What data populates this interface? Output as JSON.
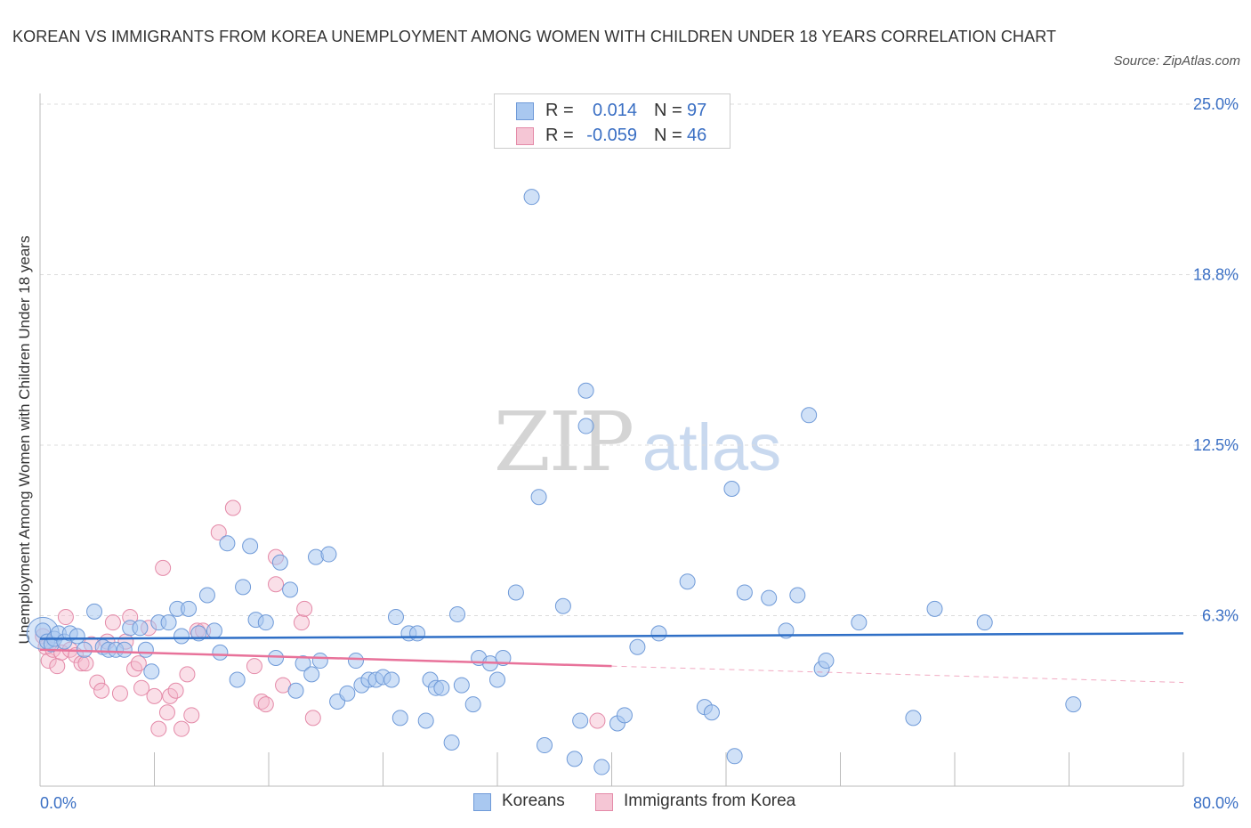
{
  "title": "KOREAN VS IMMIGRANTS FROM KOREA UNEMPLOYMENT AMONG WOMEN WITH CHILDREN UNDER 18 YEARS CORRELATION CHART",
  "source": "Source: ZipAtlas.com",
  "watermark": {
    "zip": "ZIP",
    "atlas": "atlas"
  },
  "colors": {
    "blue_fill": "#a9c8f0",
    "blue_stroke": "#6f9ad8",
    "blue_line": "#2f6fc6",
    "pink_fill": "#f5b8cb",
    "pink_stroke": "#e48aa8",
    "pink_line": "#e8729a",
    "axis_text": "#3a6fc4",
    "grid": "#dcdcdc"
  },
  "legend_top": [
    {
      "r_label": "R =",
      "r_value": "0.014",
      "n_label": "N =",
      "n_value": "97"
    },
    {
      "r_label": "R =",
      "r_value": "-0.059",
      "n_label": "N =",
      "n_value": "46"
    }
  ],
  "legend_bottom": [
    {
      "label": "Koreans"
    },
    {
      "label": "Immigrants from Korea"
    }
  ],
  "chart_data": {
    "type": "scatter",
    "title": "KOREAN VS IMMIGRANTS FROM KOREA UNEMPLOYMENT AMONG WOMEN WITH CHILDREN UNDER 18 YEARS CORRELATION CHART",
    "xlabel": "",
    "ylabel": "Unemployment Among Women with Children Under 18 years",
    "xlim": [
      0,
      80
    ],
    "ylim": [
      0,
      25
    ],
    "x_tick_labels": [
      "0.0%",
      "80.0%"
    ],
    "y_tick_labels": [
      "6.3%",
      "12.5%",
      "18.8%",
      "25.0%"
    ],
    "y_ticks": [
      6.25,
      12.5,
      18.75,
      25.0
    ],
    "series": [
      {
        "name": "Koreans",
        "r": 0.014,
        "n": 97,
        "trend": {
          "x": [
            0,
            80
          ],
          "y": [
            5.4,
            5.6
          ]
        },
        "points": [
          [
            0.2,
            5.7
          ],
          [
            0.5,
            5.3
          ],
          [
            0.8,
            5.2
          ],
          [
            1.0,
            5.4
          ],
          [
            1.3,
            5.6
          ],
          [
            1.7,
            5.3
          ],
          [
            2.1,
            5.6
          ],
          [
            2.6,
            5.5
          ],
          [
            3.1,
            5.0
          ],
          [
            3.8,
            6.4
          ],
          [
            4.4,
            5.1
          ],
          [
            4.8,
            5.0
          ],
          [
            5.3,
            5.0
          ],
          [
            5.9,
            5.0
          ],
          [
            6.3,
            5.8
          ],
          [
            7.0,
            5.8
          ],
          [
            7.4,
            5.0
          ],
          [
            7.8,
            4.2
          ],
          [
            8.3,
            6.0
          ],
          [
            9.0,
            6.0
          ],
          [
            9.6,
            6.5
          ],
          [
            9.9,
            5.5
          ],
          [
            10.4,
            6.5
          ],
          [
            11.1,
            5.6
          ],
          [
            11.7,
            7.0
          ],
          [
            12.2,
            5.7
          ],
          [
            12.6,
            4.9
          ],
          [
            13.1,
            8.9
          ],
          [
            13.8,
            3.9
          ],
          [
            14.2,
            7.3
          ],
          [
            14.7,
            8.8
          ],
          [
            15.1,
            6.1
          ],
          [
            15.8,
            6.0
          ],
          [
            16.5,
            4.7
          ],
          [
            16.8,
            8.2
          ],
          [
            17.5,
            7.2
          ],
          [
            17.9,
            3.5
          ],
          [
            18.4,
            4.5
          ],
          [
            19.0,
            4.1
          ],
          [
            19.3,
            8.4
          ],
          [
            19.6,
            4.6
          ],
          [
            20.2,
            8.5
          ],
          [
            20.8,
            3.1
          ],
          [
            21.5,
            3.4
          ],
          [
            22.1,
            4.6
          ],
          [
            22.5,
            3.7
          ],
          [
            23.0,
            3.9
          ],
          [
            23.5,
            3.9
          ],
          [
            24.0,
            4.0
          ],
          [
            24.6,
            3.9
          ],
          [
            24.9,
            6.2
          ],
          [
            25.2,
            2.5
          ],
          [
            25.8,
            5.6
          ],
          [
            26.4,
            5.6
          ],
          [
            27.0,
            2.4
          ],
          [
            27.3,
            3.9
          ],
          [
            27.7,
            3.6
          ],
          [
            28.1,
            3.6
          ],
          [
            28.8,
            1.6
          ],
          [
            29.2,
            6.3
          ],
          [
            29.5,
            3.7
          ],
          [
            30.3,
            3.0
          ],
          [
            30.7,
            4.7
          ],
          [
            31.5,
            4.5
          ],
          [
            32.0,
            3.9
          ],
          [
            32.4,
            4.7
          ],
          [
            33.3,
            7.1
          ],
          [
            34.4,
            21.6
          ],
          [
            34.9,
            10.6
          ],
          [
            35.3,
            1.5
          ],
          [
            36.6,
            6.6
          ],
          [
            37.4,
            1.0
          ],
          [
            37.8,
            2.4
          ],
          [
            38.2,
            14.5
          ],
          [
            38.2,
            13.2
          ],
          [
            39.3,
            0.7
          ],
          [
            40.4,
            2.3
          ],
          [
            40.9,
            2.6
          ],
          [
            41.8,
            5.1
          ],
          [
            43.3,
            5.6
          ],
          [
            45.3,
            7.5
          ],
          [
            46.5,
            2.9
          ],
          [
            47.0,
            2.7
          ],
          [
            48.4,
            10.9
          ],
          [
            48.6,
            1.1
          ],
          [
            49.3,
            7.1
          ],
          [
            51.0,
            6.9
          ],
          [
            52.2,
            5.7
          ],
          [
            53.0,
            7.0
          ],
          [
            53.8,
            13.6
          ],
          [
            54.7,
            4.3
          ],
          [
            55.0,
            4.6
          ],
          [
            57.3,
            6.0
          ],
          [
            61.1,
            2.5
          ],
          [
            62.6,
            6.5
          ],
          [
            66.1,
            6.0
          ],
          [
            72.3,
            3.0
          ]
        ]
      },
      {
        "name": "Immigrants from Korea",
        "r": -0.059,
        "n": 46,
        "trend": {
          "x": [
            0,
            40
          ],
          "y": [
            5.0,
            4.4
          ]
        },
        "trend_dashed": {
          "x": [
            40,
            80
          ],
          "y": [
            4.4,
            3.8
          ]
        },
        "points": [
          [
            0.2,
            5.5
          ],
          [
            0.4,
            5.1
          ],
          [
            0.6,
            4.6
          ],
          [
            0.9,
            5.0
          ],
          [
            1.2,
            4.4
          ],
          [
            1.5,
            4.9
          ],
          [
            1.8,
            6.2
          ],
          [
            2.1,
            5.0
          ],
          [
            2.5,
            4.8
          ],
          [
            2.9,
            4.5
          ],
          [
            3.2,
            4.5
          ],
          [
            3.6,
            5.2
          ],
          [
            4.0,
            3.8
          ],
          [
            4.3,
            3.5
          ],
          [
            4.7,
            5.3
          ],
          [
            5.1,
            6.0
          ],
          [
            5.6,
            3.4
          ],
          [
            6.0,
            5.3
          ],
          [
            6.3,
            6.2
          ],
          [
            6.6,
            4.3
          ],
          [
            6.9,
            4.5
          ],
          [
            7.1,
            3.6
          ],
          [
            7.6,
            5.8
          ],
          [
            8.0,
            3.3
          ],
          [
            8.3,
            2.1
          ],
          [
            8.6,
            8.0
          ],
          [
            8.9,
            2.7
          ],
          [
            9.1,
            3.3
          ],
          [
            9.5,
            3.5
          ],
          [
            9.9,
            2.1
          ],
          [
            10.3,
            4.1
          ],
          [
            10.6,
            2.6
          ],
          [
            11.0,
            5.7
          ],
          [
            11.4,
            5.7
          ],
          [
            12.5,
            9.3
          ],
          [
            13.5,
            10.2
          ],
          [
            15.0,
            4.4
          ],
          [
            15.5,
            3.1
          ],
          [
            15.8,
            3.0
          ],
          [
            16.5,
            8.4
          ],
          [
            16.5,
            7.4
          ],
          [
            17.0,
            3.7
          ],
          [
            18.3,
            6.0
          ],
          [
            18.5,
            6.5
          ],
          [
            19.1,
            2.5
          ],
          [
            39.0,
            2.4
          ]
        ]
      }
    ]
  }
}
